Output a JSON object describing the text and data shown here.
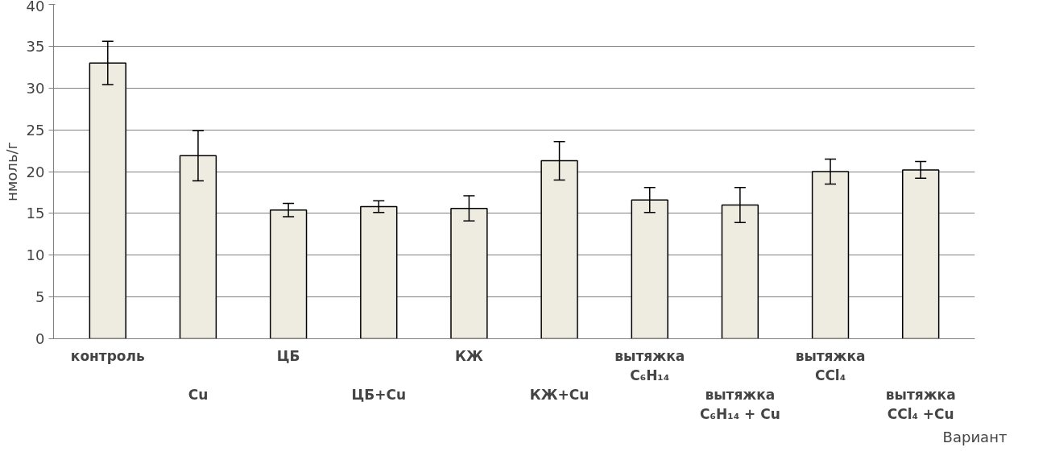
{
  "chart_data": {
    "type": "bar",
    "ylabel": "нмоль/г",
    "xlabel": "Вариант",
    "categories": [
      "контроль",
      "Cu",
      "ЦБ",
      "ЦБ+Cu",
      "КЖ",
      "КЖ+Cu",
      "вытяжка\nC₆H₁₄",
      "вытяжка\nC₆H₁₄ + Cu",
      "вытяжка\nCCl₄",
      "вытяжка\nCCl₄ +Cu"
    ],
    "values": [
      33.0,
      21.9,
      15.4,
      15.8,
      15.6,
      21.3,
      16.6,
      16.0,
      20.0,
      20.2
    ],
    "errors": [
      2.6,
      3.0,
      0.8,
      0.7,
      1.5,
      2.3,
      1.5,
      2.1,
      1.5,
      1.0
    ],
    "color": "#eeece1",
    "ylim": [
      0,
      40
    ],
    "yticks": [
      0,
      5,
      10,
      15,
      20,
      25,
      30,
      35,
      40
    ],
    "grid": "y"
  }
}
